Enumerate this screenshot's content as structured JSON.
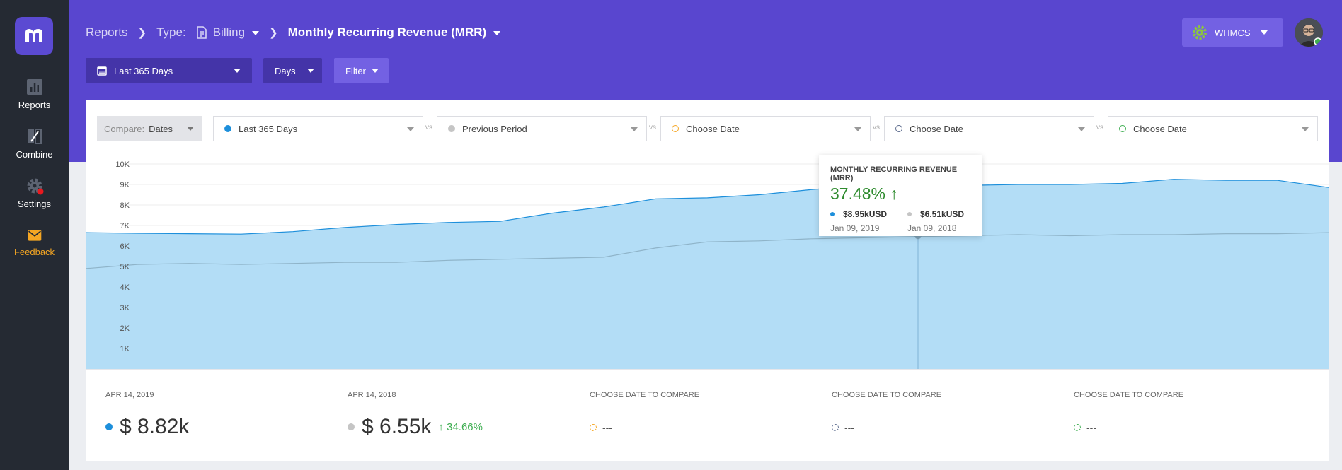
{
  "sidebar": {
    "logo": "m",
    "items": [
      {
        "label": "Reports",
        "icon": "bar-chart-icon"
      },
      {
        "label": "Combine",
        "icon": "combine-icon"
      },
      {
        "label": "Settings",
        "icon": "gear-icon"
      },
      {
        "label": "Feedback",
        "icon": "mail-icon"
      }
    ]
  },
  "header": {
    "breadcrumb": {
      "root": "Reports",
      "type_label": "Type:",
      "type_value": "Billing",
      "report": "Monthly Recurring Revenue (MRR)"
    },
    "date_range_button": "Last 365 Days",
    "granularity_button": "Days",
    "filter_button": "Filter",
    "account_button": "WHMCS"
  },
  "compare": {
    "label": "Compare:",
    "value": "Dates",
    "vs": "vs",
    "selectors": [
      {
        "label": "Last 365 Days",
        "color": "#1d8fdb",
        "filled": true
      },
      {
        "label": "Previous Period",
        "color": "#c5c5c5",
        "filled": true
      },
      {
        "label": "Choose Date",
        "color": "#f5a623",
        "filled": false
      },
      {
        "label": "Choose Date",
        "color": "#5b6a8c",
        "filled": false
      },
      {
        "label": "Choose Date",
        "color": "#3fae52",
        "filled": false
      }
    ]
  },
  "chart_data": {
    "type": "area",
    "ylim": [
      0,
      10000
    ],
    "yticks": [
      "10K",
      "9K",
      "8K",
      "7K",
      "6K",
      "5K",
      "4K",
      "3K",
      "2K",
      "1K"
    ],
    "series": [
      {
        "color": "#1d8fdb",
        "values": [
          6.65,
          6.62,
          6.6,
          6.58,
          6.7,
          6.9,
          7.05,
          7.15,
          7.2,
          7.6,
          7.9,
          8.3,
          8.35,
          8.5,
          8.75,
          8.95,
          8.95,
          8.95,
          9.0,
          9.0,
          9.05,
          9.25,
          9.2,
          9.2,
          8.85
        ]
      },
      {
        "color": "#8fb4c9",
        "values": [
          4.9,
          5.1,
          5.15,
          5.1,
          5.15,
          5.2,
          5.2,
          5.3,
          5.35,
          5.4,
          5.45,
          5.9,
          6.2,
          6.25,
          6.35,
          6.4,
          6.45,
          6.5,
          6.55,
          6.5,
          6.55,
          6.55,
          6.6,
          6.6,
          6.65
        ]
      }
    ]
  },
  "tooltip": {
    "title": "MONTHLY RECURRING REVENUE (MRR)",
    "change": "37.48%",
    "current_value": "$8.95kUSD",
    "current_date": "Jan 09, 2019",
    "previous_value": "$6.51kUSD",
    "previous_date": "Jan 09, 2018"
  },
  "summary": [
    {
      "label": "APR 14, 2019",
      "value": "$ 8.82k",
      "color": "#1d8fdb"
    },
    {
      "label": "APR 14, 2018",
      "value": "$ 6.55k",
      "change": "34.66%",
      "color": "#c5c5c5"
    },
    {
      "label": "CHOOSE DATE TO COMPARE",
      "value": "---",
      "color": "#f5a623"
    },
    {
      "label": "CHOOSE DATE TO COMPARE",
      "value": "---",
      "color": "#5b6a8c"
    },
    {
      "label": "CHOOSE DATE TO COMPARE",
      "value": "---",
      "color": "#3fae52"
    }
  ]
}
